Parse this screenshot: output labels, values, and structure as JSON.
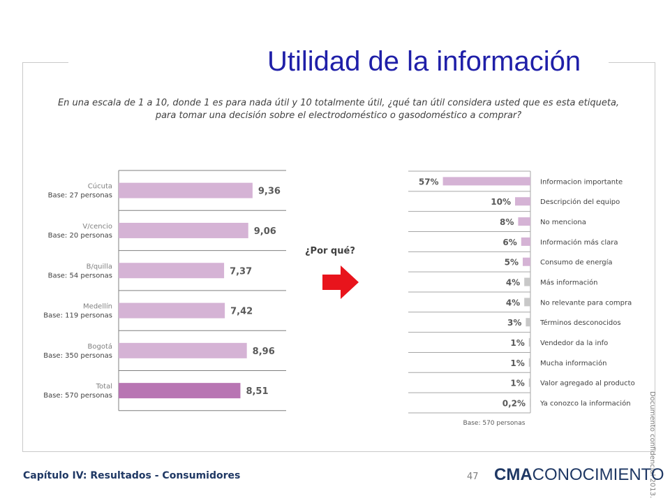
{
  "title": "Utilidad de la información",
  "question": "En una escala de 1 a 10, donde 1 es para nada útil y 10 totalmente útil, ¿qué tan útil considera usted que es esta etiqueta, para tomar una decisión sobre el electrodoméstico o gasodoméstico a comprar?",
  "why_label": "¿Por qué?",
  "watermark": "Documento confidencial 2013.",
  "footer": {
    "chapter": "Capítulo IV: Resultados - Consumidores",
    "page": "47",
    "logo_bold": "CMA",
    "logo_rest": "CONOCIMIENTO"
  },
  "colors": {
    "bar": "#d5b3d5",
    "total_bar": "#b875b3",
    "small_bar": "#c8c8c8",
    "title": "#1f1fa8",
    "arrow": "#e8141c"
  },
  "chart_data": [
    {
      "type": "bar",
      "orientation": "horizontal",
      "categories": [
        "Cúcuta",
        "V/cencio",
        "B/quilla",
        "Medellín",
        "Bogotá",
        "Total"
      ],
      "bases": [
        "Base: 27 personas",
        "Base: 20 personas",
        "Base: 54 personas",
        "Base: 119 personas",
        "Base: 350 personas",
        "Base: 570 personas"
      ],
      "values": [
        9.36,
        9.06,
        7.37,
        7.42,
        8.96,
        8.51
      ],
      "value_labels": [
        "9,36",
        "9,06",
        "7,37",
        "7,42",
        "8,96",
        "8,51"
      ],
      "highlight_index": 5,
      "xlim": [
        0,
        10
      ]
    },
    {
      "type": "bar",
      "orientation": "horizontal",
      "categories": [
        "Informacion importante",
        "Descripción del equipo",
        "No menciona",
        "Información más clara",
        "Consumo de energía",
        "Más información",
        "No relevante para compra",
        "Términos desconocidos",
        "Vendedor da la info",
        "Mucha información",
        "Valor agregado al producto",
        "Ya conozco la información"
      ],
      "values": [
        57,
        10,
        8,
        6,
        5,
        4,
        4,
        3,
        1,
        1,
        1,
        0.2
      ],
      "value_labels": [
        "57%",
        "10%",
        "8%",
        "6%",
        "5%",
        "4%",
        "4%",
        "3%",
        "1%",
        "1%",
        "1%",
        "0,2%"
      ],
      "base": "Base: 570 personas",
      "xlim": [
        0,
        100
      ]
    }
  ]
}
